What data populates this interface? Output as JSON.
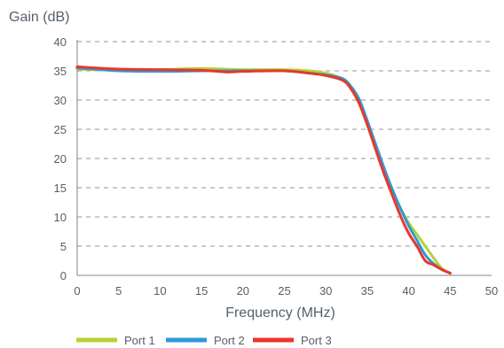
{
  "chart_data": {
    "type": "line",
    "ylabel": "Gain (dB)",
    "xlabel": "Frequency (MHz)",
    "xlim": [
      0,
      50
    ],
    "ylim": [
      0,
      40
    ],
    "x_ticks": [
      0,
      5,
      10,
      15,
      20,
      25,
      30,
      35,
      40,
      45,
      50
    ],
    "y_ticks": [
      0,
      5,
      10,
      15,
      20,
      25,
      30,
      35,
      40
    ],
    "grid": "horizontal dashed",
    "legend_position": "bottom-left",
    "series": [
      {
        "name": "Port 1",
        "color": "#b5d334",
        "points": [
          [
            0,
            35.3
          ],
          [
            5,
            35.1
          ],
          [
            10,
            35.2
          ],
          [
            15,
            35.4
          ],
          [
            20,
            35.2
          ],
          [
            25,
            35.2
          ],
          [
            28,
            35
          ],
          [
            30,
            34.6
          ],
          [
            32,
            33.6
          ],
          [
            33,
            32
          ],
          [
            34,
            29.5
          ],
          [
            35,
            25.8
          ],
          [
            36,
            21.8
          ],
          [
            37,
            18
          ],
          [
            38,
            14.5
          ],
          [
            39,
            11.5
          ],
          [
            40,
            9
          ],
          [
            41,
            7
          ],
          [
            42,
            5
          ],
          [
            43,
            3
          ],
          [
            44,
            1.2
          ],
          [
            45,
            0.3
          ]
        ]
      },
      {
        "name": "Port 2",
        "color": "#2e9ad6",
        "points": [
          [
            0,
            35.5
          ],
          [
            5,
            35
          ],
          [
            10,
            34.9
          ],
          [
            15,
            35
          ],
          [
            20,
            35
          ],
          [
            25,
            35
          ],
          [
            28,
            34.6
          ],
          [
            30,
            34.3
          ],
          [
            32,
            33.7
          ],
          [
            33,
            32.4
          ],
          [
            34,
            30.2
          ],
          [
            35,
            26.5
          ],
          [
            36,
            22.5
          ],
          [
            37,
            18.5
          ],
          [
            38,
            14.8
          ],
          [
            39,
            11.5
          ],
          [
            40,
            8.5
          ],
          [
            41,
            6
          ],
          [
            42,
            3.5
          ],
          [
            43,
            2
          ],
          [
            44,
            1
          ],
          [
            45,
            0.4
          ]
        ]
      },
      {
        "name": "Port 3",
        "color": "#e8372c",
        "points": [
          [
            0,
            35.7
          ],
          [
            5,
            35.3
          ],
          [
            10,
            35.2
          ],
          [
            15,
            35.1
          ],
          [
            18,
            34.8
          ],
          [
            20,
            34.9
          ],
          [
            25,
            35
          ],
          [
            28,
            34.6
          ],
          [
            30,
            34.2
          ],
          [
            32,
            33.4
          ],
          [
            33,
            32
          ],
          [
            34,
            29.5
          ],
          [
            35,
            25.8
          ],
          [
            36,
            21.6
          ],
          [
            37,
            17.5
          ],
          [
            38,
            13.8
          ],
          [
            39,
            10.2
          ],
          [
            40,
            7.2
          ],
          [
            41,
            5
          ],
          [
            42,
            2.5
          ],
          [
            43,
            1.8
          ],
          [
            44,
            1
          ],
          [
            45,
            0.4
          ]
        ]
      }
    ]
  }
}
